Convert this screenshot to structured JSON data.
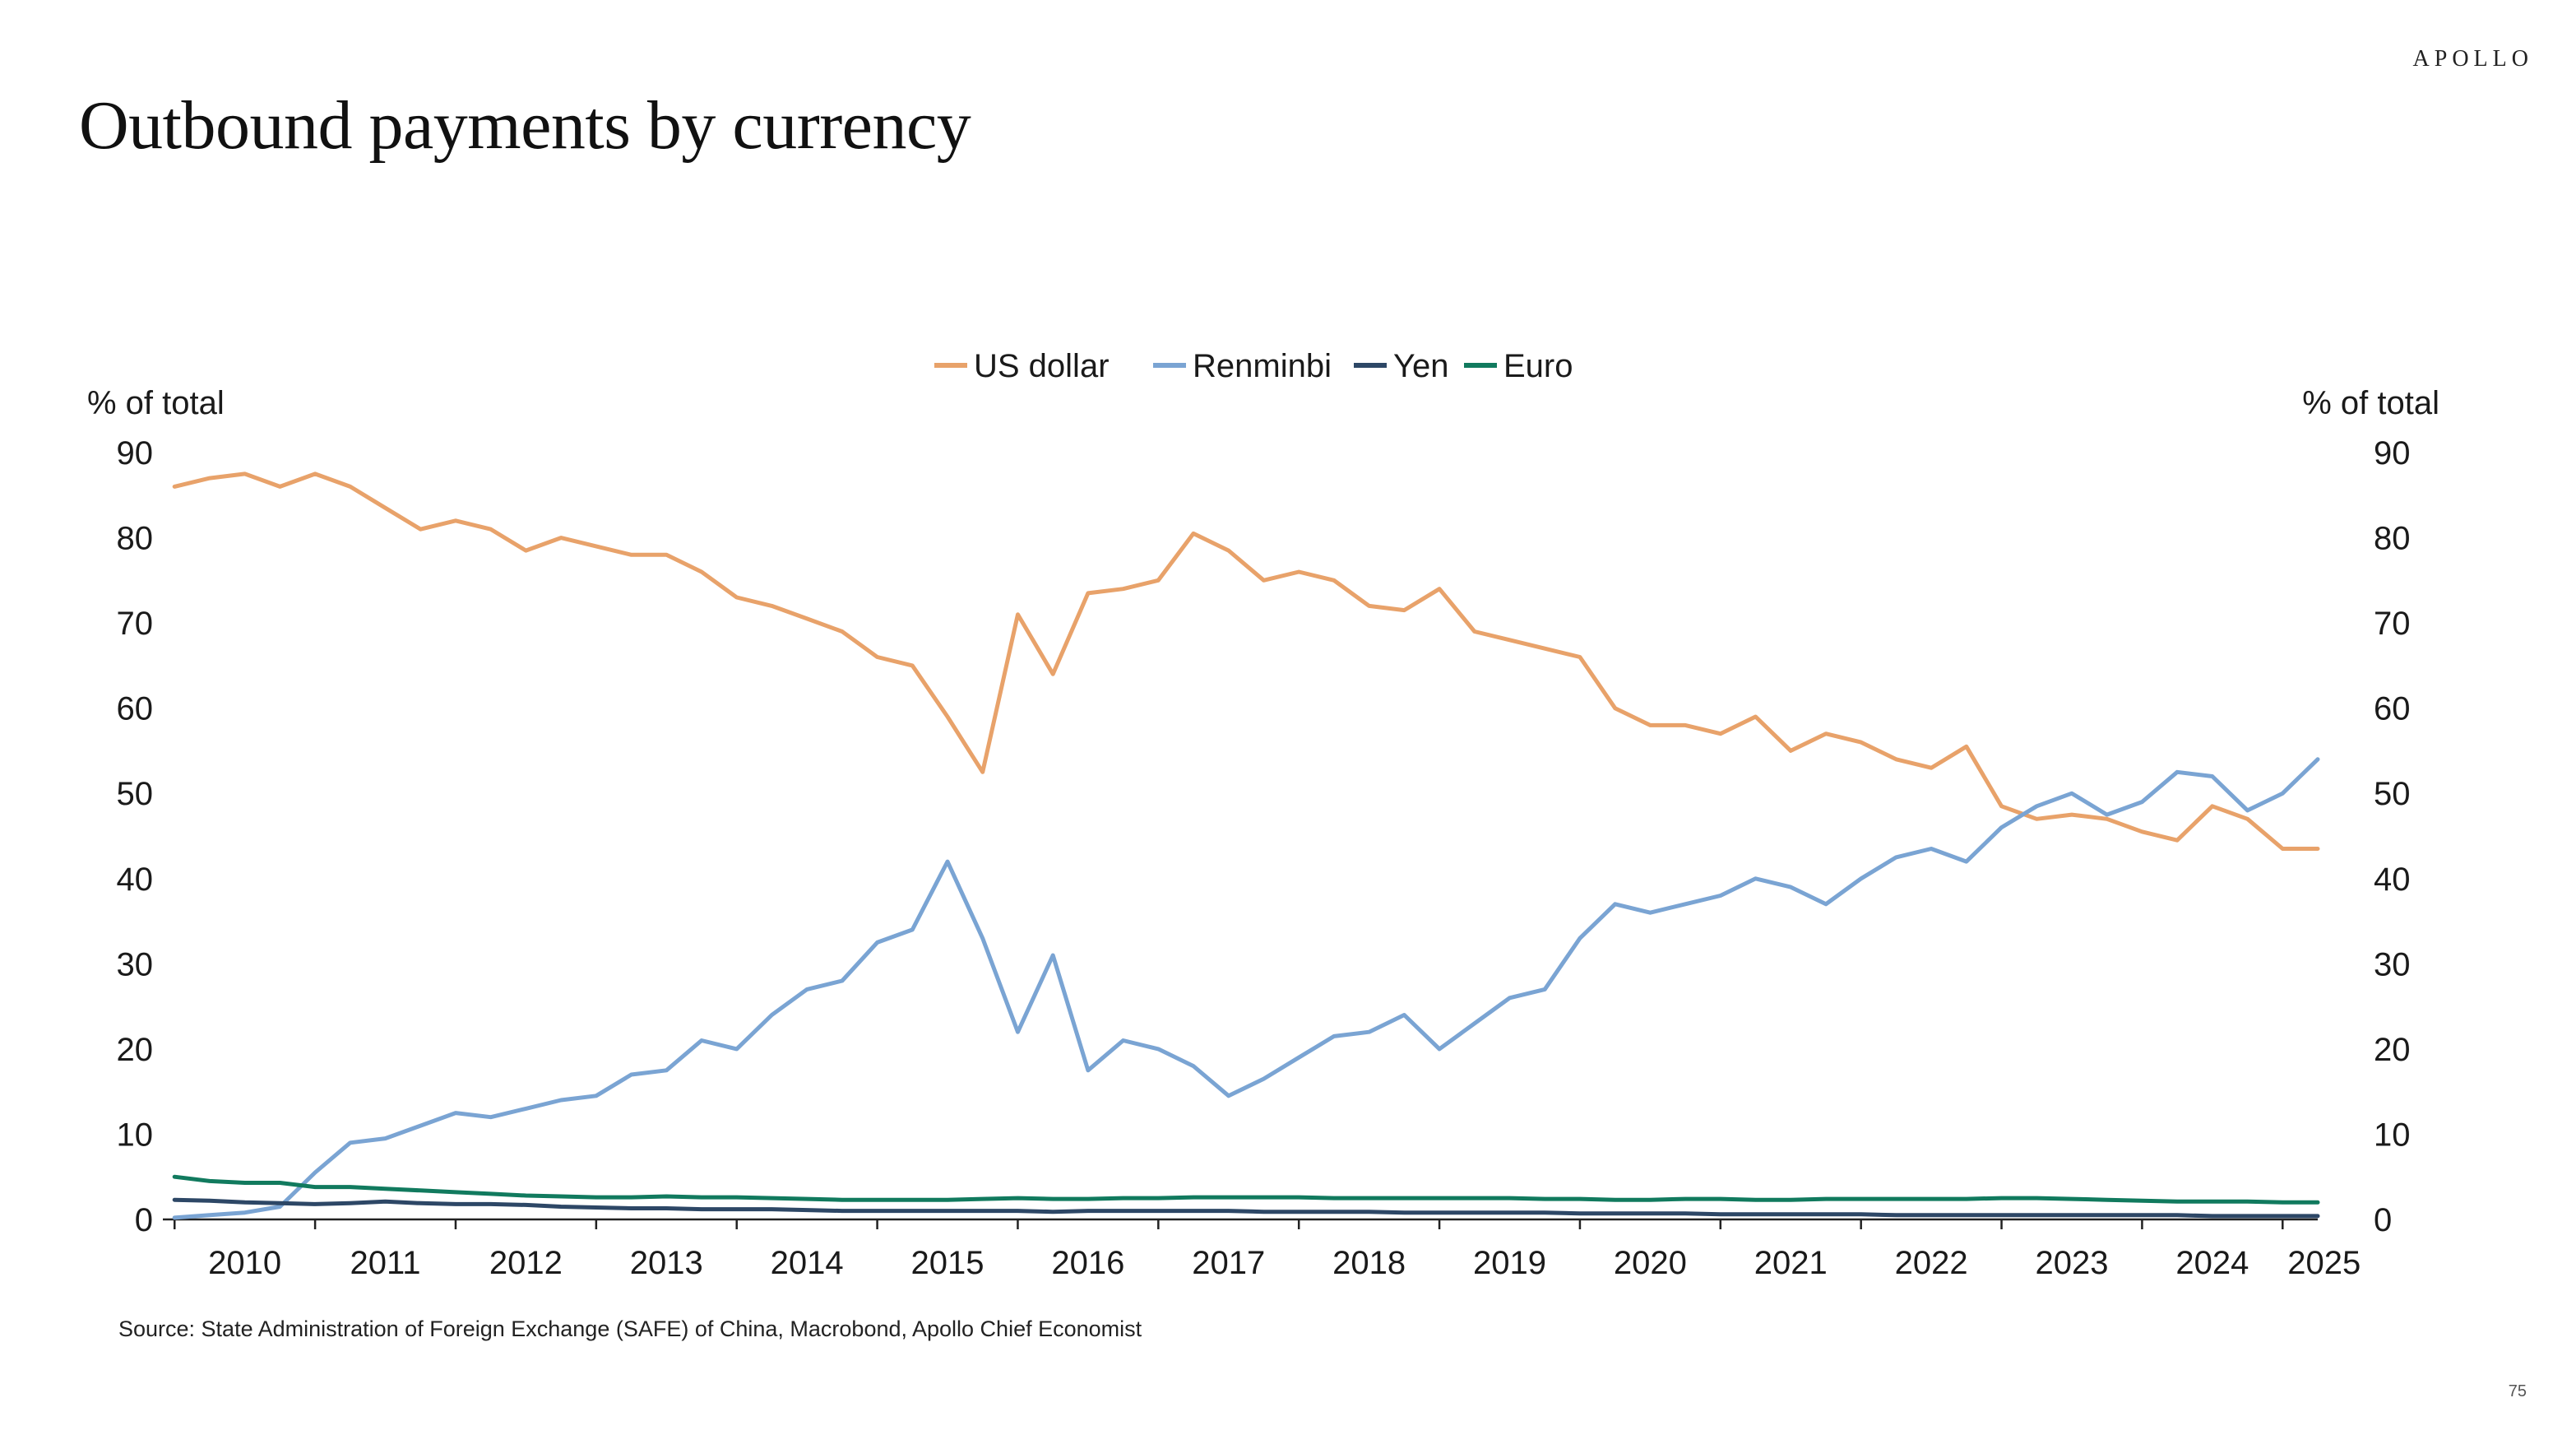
{
  "header": {
    "brand": "APOLLO",
    "title": "Outbound payments by currency"
  },
  "footer": {
    "source": "Source: State Administration of Foreign Exchange (SAFE) of China, Macrobond, Apollo Chief Economist",
    "page_number": "75"
  },
  "chart_data": {
    "type": "line",
    "title": "Outbound payments by currency",
    "ylabel_left": "% of total",
    "ylabel_right": "% of total",
    "ylim": [
      0,
      90
    ],
    "yticks": [
      0,
      10,
      20,
      30,
      40,
      50,
      60,
      70,
      80,
      90
    ],
    "xlim": [
      "2009-12",
      "2025-04"
    ],
    "xticks": [
      "2010",
      "2011",
      "2012",
      "2013",
      "2014",
      "2015",
      "2016",
      "2017",
      "2018",
      "2019",
      "2020",
      "2021",
      "2022",
      "2023",
      "2024",
      "2025"
    ],
    "legend_position": "top-center",
    "grid": false,
    "sampling": "quarterly (Jan, Apr, Jul, Oct)",
    "x": [
      "2010-01",
      "2010-04",
      "2010-07",
      "2010-10",
      "2011-01",
      "2011-04",
      "2011-07",
      "2011-10",
      "2012-01",
      "2012-04",
      "2012-07",
      "2012-10",
      "2013-01",
      "2013-04",
      "2013-07",
      "2013-10",
      "2014-01",
      "2014-04",
      "2014-07",
      "2014-10",
      "2015-01",
      "2015-04",
      "2015-07",
      "2015-10",
      "2016-01",
      "2016-04",
      "2016-07",
      "2016-10",
      "2017-01",
      "2017-04",
      "2017-07",
      "2017-10",
      "2018-01",
      "2018-04",
      "2018-07",
      "2018-10",
      "2019-01",
      "2019-04",
      "2019-07",
      "2019-10",
      "2020-01",
      "2020-04",
      "2020-07",
      "2020-10",
      "2021-01",
      "2021-04",
      "2021-07",
      "2021-10",
      "2022-01",
      "2022-04",
      "2022-07",
      "2022-10",
      "2023-01",
      "2023-04",
      "2023-07",
      "2023-10",
      "2024-01",
      "2024-04",
      "2024-07",
      "2024-10",
      "2025-01",
      "2025-04"
    ],
    "series": [
      {
        "name": "US dollar",
        "color": "#E8A26A",
        "values": [
          86,
          87,
          87.5,
          86,
          87.5,
          86,
          83.5,
          81,
          82,
          81,
          78.5,
          80,
          79,
          78,
          78,
          76,
          73,
          72,
          70.5,
          69,
          66,
          65,
          59,
          52.5,
          71,
          64,
          73.5,
          74,
          75,
          80.5,
          78.5,
          75,
          76,
          75,
          72,
          71.5,
          74,
          69,
          68,
          67,
          66,
          60,
          58,
          58,
          57,
          59,
          55,
          57,
          56,
          54,
          53,
          55.5,
          48.5,
          47,
          47.5,
          47,
          45.5,
          44.5,
          48.5,
          47,
          43.5,
          43.5
        ]
      },
      {
        "name": "Renminbi",
        "color": "#7AA4D3",
        "values": [
          0.2,
          0.5,
          0.8,
          1.5,
          5.5,
          9,
          9.5,
          11,
          12.5,
          12,
          13,
          14,
          14.5,
          17,
          17.5,
          21,
          20,
          24,
          27,
          28,
          32.5,
          34,
          42,
          33,
          22,
          31,
          17.5,
          21,
          20,
          18,
          14.5,
          16.5,
          19,
          21.5,
          22,
          24,
          20,
          23,
          26,
          27,
          33,
          37,
          36,
          37,
          38,
          40,
          39,
          37,
          40,
          42.5,
          43.5,
          42,
          46,
          48.5,
          50,
          47.5,
          49,
          52.5,
          52,
          48,
          50,
          54
        ]
      },
      {
        "name": "Yen",
        "color": "#2D4766",
        "values": [
          2.3,
          2.2,
          2.0,
          1.9,
          1.8,
          1.9,
          2.1,
          1.9,
          1.8,
          1.8,
          1.7,
          1.5,
          1.4,
          1.3,
          1.3,
          1.2,
          1.2,
          1.2,
          1.1,
          1.0,
          1.0,
          1.0,
          1.0,
          1.0,
          1.0,
          0.9,
          1.0,
          1.0,
          1.0,
          1.0,
          1.0,
          0.9,
          0.9,
          0.9,
          0.9,
          0.8,
          0.8,
          0.8,
          0.8,
          0.8,
          0.7,
          0.7,
          0.7,
          0.7,
          0.6,
          0.6,
          0.6,
          0.6,
          0.6,
          0.5,
          0.5,
          0.5,
          0.5,
          0.5,
          0.5,
          0.5,
          0.5,
          0.5,
          0.4,
          0.4,
          0.4,
          0.4
        ]
      },
      {
        "name": "Euro",
        "color": "#117A5E",
        "values": [
          5.0,
          4.5,
          4.3,
          4.3,
          3.8,
          3.8,
          3.6,
          3.4,
          3.2,
          3.0,
          2.8,
          2.7,
          2.6,
          2.6,
          2.7,
          2.6,
          2.6,
          2.5,
          2.4,
          2.3,
          2.3,
          2.3,
          2.3,
          2.4,
          2.5,
          2.4,
          2.4,
          2.5,
          2.5,
          2.6,
          2.6,
          2.6,
          2.6,
          2.5,
          2.5,
          2.5,
          2.5,
          2.5,
          2.5,
          2.4,
          2.4,
          2.3,
          2.3,
          2.4,
          2.4,
          2.3,
          2.3,
          2.4,
          2.4,
          2.4,
          2.4,
          2.4,
          2.5,
          2.5,
          2.4,
          2.3,
          2.2,
          2.1,
          2.1,
          2.1,
          2.0,
          2.0
        ]
      }
    ]
  }
}
